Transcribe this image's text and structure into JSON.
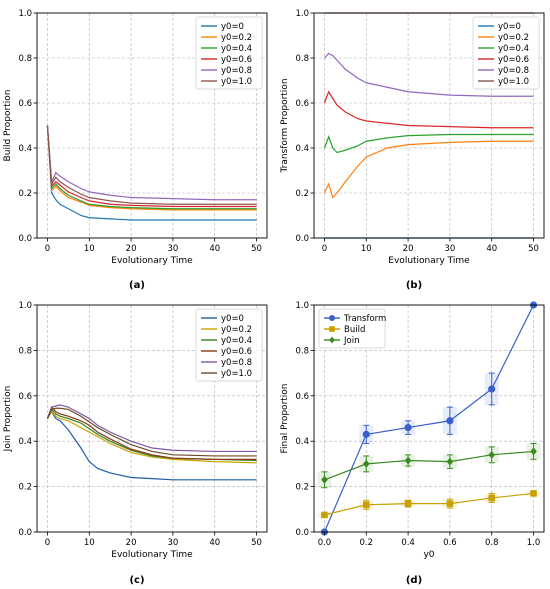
{
  "figure": {
    "captions": [
      "(a)",
      "(b)",
      "(c)",
      "(d)"
    ]
  },
  "chart_data": [
    {
      "type": "line",
      "panel": "(a)",
      "xlabel": "Evolutionary Time",
      "ylabel": "Build Proportion",
      "xlim": [
        -2.5,
        52.5
      ],
      "ylim": [
        0.0,
        1.0
      ],
      "xticks": [
        0,
        10,
        20,
        30,
        40,
        50
      ],
      "yticks": [
        0.0,
        0.2,
        0.4,
        0.6,
        0.8,
        1.0
      ],
      "tick_labels_x": [
        "0",
        "10",
        "20",
        "30",
        "40",
        "50"
      ],
      "tick_labels_y": [
        "0.0",
        "0.2",
        "0.4",
        "0.6",
        "0.8",
        "1.0"
      ],
      "grid": true,
      "legend_position": "top-right",
      "x": [
        0,
        1,
        2,
        3,
        5,
        8,
        10,
        15,
        20,
        30,
        40,
        50
      ],
      "series": [
        {
          "name": "y0=0",
          "color": "#1f77b4",
          "values": [
            0.5,
            0.2,
            0.17,
            0.15,
            0.13,
            0.1,
            0.09,
            0.085,
            0.08,
            0.08,
            0.08,
            0.08
          ]
        },
        {
          "name": "y0=0.2",
          "color": "#ff7f0e",
          "values": [
            0.5,
            0.21,
            0.23,
            0.21,
            0.18,
            0.16,
            0.145,
            0.135,
            0.13,
            0.125,
            0.125,
            0.125
          ]
        },
        {
          "name": "y0=0.4",
          "color": "#2ca02c",
          "values": [
            0.5,
            0.22,
            0.24,
            0.22,
            0.19,
            0.165,
            0.15,
            0.14,
            0.135,
            0.13,
            0.13,
            0.13
          ]
        },
        {
          "name": "y0=0.6",
          "color": "#d62728",
          "values": [
            0.5,
            0.23,
            0.25,
            0.235,
            0.205,
            0.18,
            0.165,
            0.15,
            0.145,
            0.14,
            0.14,
            0.14
          ]
        },
        {
          "name": "y0=0.8",
          "color": "#9467bd",
          "values": [
            0.5,
            0.25,
            0.29,
            0.275,
            0.25,
            0.22,
            0.205,
            0.19,
            0.18,
            0.175,
            0.17,
            0.17
          ]
        },
        {
          "name": "y0=1.0",
          "color": "#8c564b",
          "values": [
            0.5,
            0.24,
            0.27,
            0.25,
            0.225,
            0.195,
            0.18,
            0.165,
            0.155,
            0.15,
            0.15,
            0.15
          ]
        }
      ]
    },
    {
      "type": "line",
      "panel": "(b)",
      "xlabel": "Evolutionary Time",
      "ylabel": "Transform Proportion",
      "xlim": [
        -2.5,
        52.5
      ],
      "ylim": [
        0.0,
        1.0
      ],
      "xticks": [
        0,
        10,
        20,
        30,
        40,
        50
      ],
      "yticks": [
        0.0,
        0.2,
        0.4,
        0.6,
        0.8,
        1.0
      ],
      "tick_labels_x": [
        "0",
        "10",
        "20",
        "30",
        "40",
        "50"
      ],
      "tick_labels_y": [
        "0.0",
        "0.2",
        "0.4",
        "0.6",
        "0.8",
        "1.0"
      ],
      "grid": true,
      "legend_position": "top-right",
      "x": [
        0,
        1,
        2,
        3,
        5,
        8,
        10,
        15,
        20,
        30,
        40,
        50
      ],
      "series": [
        {
          "name": "y0=0",
          "color": "#1f77b4",
          "values": [
            0.0,
            0.0,
            0.0,
            0.0,
            0.0,
            0.0,
            0.0,
            0.0,
            0.0,
            0.0,
            0.0,
            0.0
          ]
        },
        {
          "name": "y0=0.2",
          "color": "#ff7f0e",
          "values": [
            0.2,
            0.24,
            0.18,
            0.2,
            0.25,
            0.32,
            0.36,
            0.4,
            0.415,
            0.425,
            0.43,
            0.43
          ]
        },
        {
          "name": "y0=0.4",
          "color": "#2ca02c",
          "values": [
            0.4,
            0.45,
            0.4,
            0.38,
            0.39,
            0.41,
            0.43,
            0.445,
            0.455,
            0.46,
            0.46,
            0.46
          ]
        },
        {
          "name": "y0=0.6",
          "color": "#d62728",
          "values": [
            0.6,
            0.65,
            0.62,
            0.59,
            0.56,
            0.53,
            0.52,
            0.51,
            0.5,
            0.495,
            0.49,
            0.49
          ]
        },
        {
          "name": "y0=0.8",
          "color": "#9467bd",
          "values": [
            0.8,
            0.82,
            0.81,
            0.79,
            0.75,
            0.71,
            0.69,
            0.67,
            0.65,
            0.635,
            0.63,
            0.63
          ]
        },
        {
          "name": "y0=1.0",
          "color": "#8c564b",
          "values": [
            1.0,
            1.0,
            1.0,
            1.0,
            1.0,
            1.0,
            1.0,
            1.0,
            1.0,
            1.0,
            1.0,
            1.0
          ]
        }
      ]
    },
    {
      "type": "line",
      "panel": "(c)",
      "xlabel": "Evolutionary Time",
      "ylabel": "Join Proportion",
      "xlim": [
        -2.5,
        52.5
      ],
      "ylim": [
        0.0,
        1.0
      ],
      "xticks": [
        0,
        10,
        20,
        30,
        40,
        50
      ],
      "yticks": [
        0.0,
        0.2,
        0.4,
        0.6,
        0.8,
        1.0
      ],
      "tick_labels_x": [
        "0",
        "10",
        "20",
        "30",
        "40",
        "50"
      ],
      "tick_labels_y": [
        "0.0",
        "0.2",
        "0.4",
        "0.6",
        "0.8",
        "1.0"
      ],
      "grid": true,
      "legend_position": "top-right",
      "x": [
        0,
        1,
        2,
        3,
        5,
        8,
        10,
        12,
        15,
        20,
        25,
        30,
        40,
        50
      ],
      "series": [
        {
          "name": "y0=0",
          "color": "#1f5ea8",
          "values": [
            0.5,
            0.53,
            0.5,
            0.49,
            0.45,
            0.37,
            0.31,
            0.28,
            0.26,
            0.24,
            0.235,
            0.23,
            0.23,
            0.23
          ]
        },
        {
          "name": "y0=0.2",
          "color": "#c8a600",
          "values": [
            0.5,
            0.53,
            0.51,
            0.5,
            0.49,
            0.46,
            0.44,
            0.42,
            0.39,
            0.35,
            0.33,
            0.32,
            0.31,
            0.305
          ]
        },
        {
          "name": "y0=0.4",
          "color": "#3a7f21",
          "values": [
            0.5,
            0.54,
            0.52,
            0.51,
            0.5,
            0.48,
            0.455,
            0.43,
            0.4,
            0.36,
            0.335,
            0.325,
            0.32,
            0.315
          ]
        },
        {
          "name": "y0=0.6",
          "color": "#8b3a1a",
          "values": [
            0.5,
            0.55,
            0.53,
            0.52,
            0.51,
            0.49,
            0.47,
            0.44,
            0.41,
            0.365,
            0.34,
            0.325,
            0.32,
            0.32
          ]
        },
        {
          "name": "y0=0.8",
          "color": "#7e5aa8",
          "values": [
            0.5,
            0.55,
            0.555,
            0.56,
            0.55,
            0.52,
            0.5,
            0.47,
            0.44,
            0.4,
            0.37,
            0.36,
            0.355,
            0.355
          ]
        },
        {
          "name": "y0=1.0",
          "color": "#6b4a2b",
          "values": [
            0.5,
            0.54,
            0.545,
            0.545,
            0.54,
            0.51,
            0.485,
            0.46,
            0.43,
            0.385,
            0.355,
            0.34,
            0.335,
            0.335
          ]
        }
      ]
    },
    {
      "type": "line",
      "panel": "(d)",
      "xlabel": "y0",
      "ylabel": "Final Proportion",
      "xlim": [
        -0.05,
        1.05
      ],
      "ylim": [
        0.0,
        1.0
      ],
      "xticks": [
        0.0,
        0.2,
        0.4,
        0.6,
        0.8,
        1.0
      ],
      "yticks": [
        0.0,
        0.2,
        0.4,
        0.6,
        0.8,
        1.0
      ],
      "tick_labels_x": [
        "0.0",
        "0.2",
        "0.4",
        "0.6",
        "0.8",
        "1.0"
      ],
      "tick_labels_y": [
        "0.0",
        "0.2",
        "0.4",
        "0.6",
        "0.8",
        "1.0"
      ],
      "grid": true,
      "legend_position": "top-left",
      "x": [
        0.0,
        0.2,
        0.4,
        0.6,
        0.8,
        1.0
      ],
      "series": [
        {
          "name": "Transform",
          "color": "#3a5fcd",
          "marker": "circle",
          "values": [
            0.0,
            0.43,
            0.46,
            0.49,
            0.63,
            1.0
          ],
          "errors": [
            0.0,
            0.04,
            0.03,
            0.06,
            0.07,
            0.0
          ]
        },
        {
          "name": "Build",
          "color": "#c8a000",
          "marker": "square",
          "values": [
            0.075,
            0.12,
            0.125,
            0.125,
            0.15,
            0.17
          ],
          "errors": [
            0.01,
            0.02,
            0.015,
            0.02,
            0.02,
            0.01
          ]
        },
        {
          "name": "Join",
          "color": "#3a8a1f",
          "marker": "diamond",
          "values": [
            0.23,
            0.3,
            0.315,
            0.31,
            0.34,
            0.355
          ],
          "errors": [
            0.035,
            0.035,
            0.025,
            0.03,
            0.035,
            0.035
          ]
        }
      ]
    }
  ]
}
